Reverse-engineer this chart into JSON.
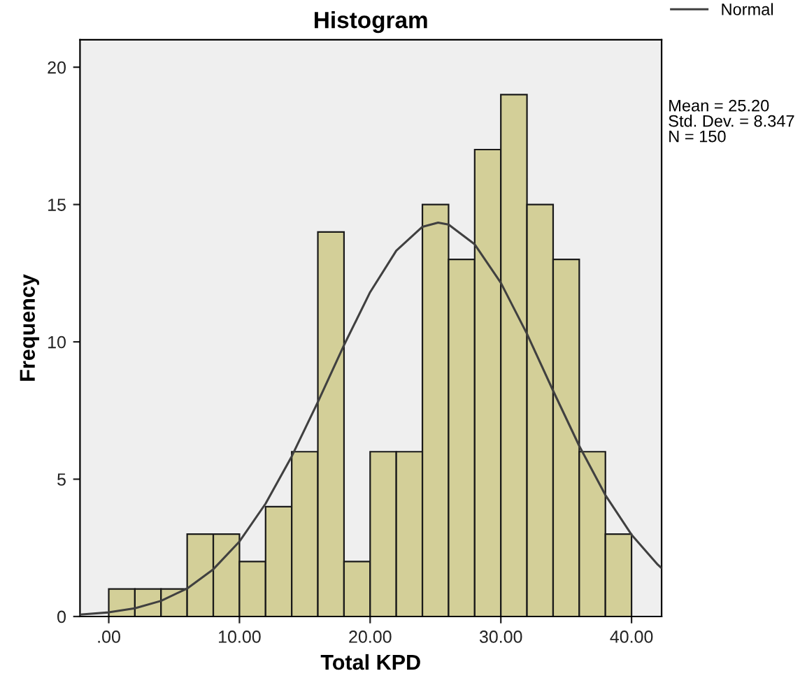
{
  "chart_data": {
    "type": "histogram",
    "title": "Histogram",
    "xlabel": "Total KPD",
    "ylabel": "Frequency",
    "bins": [
      0,
      2,
      4,
      6,
      8,
      10,
      12,
      14,
      16,
      18,
      20,
      22,
      24,
      26,
      28,
      30,
      32,
      34,
      36,
      38,
      40
    ],
    "values": [
      1,
      1,
      1,
      3,
      3,
      2,
      4,
      6,
      14,
      2,
      6,
      6,
      15,
      13,
      17,
      19,
      15,
      13,
      6,
      3
    ],
    "color": "#d3cf98",
    "series": [
      {
        "type": "line",
        "name": "Normal",
        "color": "#404040",
        "x": [
          -2.2,
          0,
          2,
          4,
          6,
          8,
          10,
          12,
          14,
          16,
          18,
          20,
          22,
          24,
          25.2,
          26,
          28,
          30,
          32,
          34,
          36,
          38,
          40,
          42,
          42.3
        ],
        "values": [
          0.07,
          0.15,
          0.3,
          0.57,
          1.02,
          1.72,
          2.73,
          4.11,
          5.83,
          7.81,
          9.88,
          11.81,
          13.32,
          14.19,
          14.34,
          14.27,
          13.55,
          12.15,
          10.29,
          8.22,
          6.21,
          4.42,
          2.98,
          1.89,
          1.76
        ]
      }
    ],
    "annotations": [
      "Mean = 25.20\nStd. Dev. = 8.347\nN = 150"
    ],
    "xlim": [
      -2.2,
      42.3
    ],
    "ylim": [
      0,
      21
    ],
    "xticks": [
      {
        "value": 0,
        "label": ".00"
      },
      {
        "value": 10,
        "label": "10.00"
      },
      {
        "value": 20,
        "label": "20.00"
      },
      {
        "value": 30,
        "label": "30.00"
      },
      {
        "value": 40,
        "label": "40.00"
      }
    ],
    "yticks": [
      0,
      5,
      10,
      15,
      20
    ],
    "grid": false,
    "legend": "top right"
  }
}
